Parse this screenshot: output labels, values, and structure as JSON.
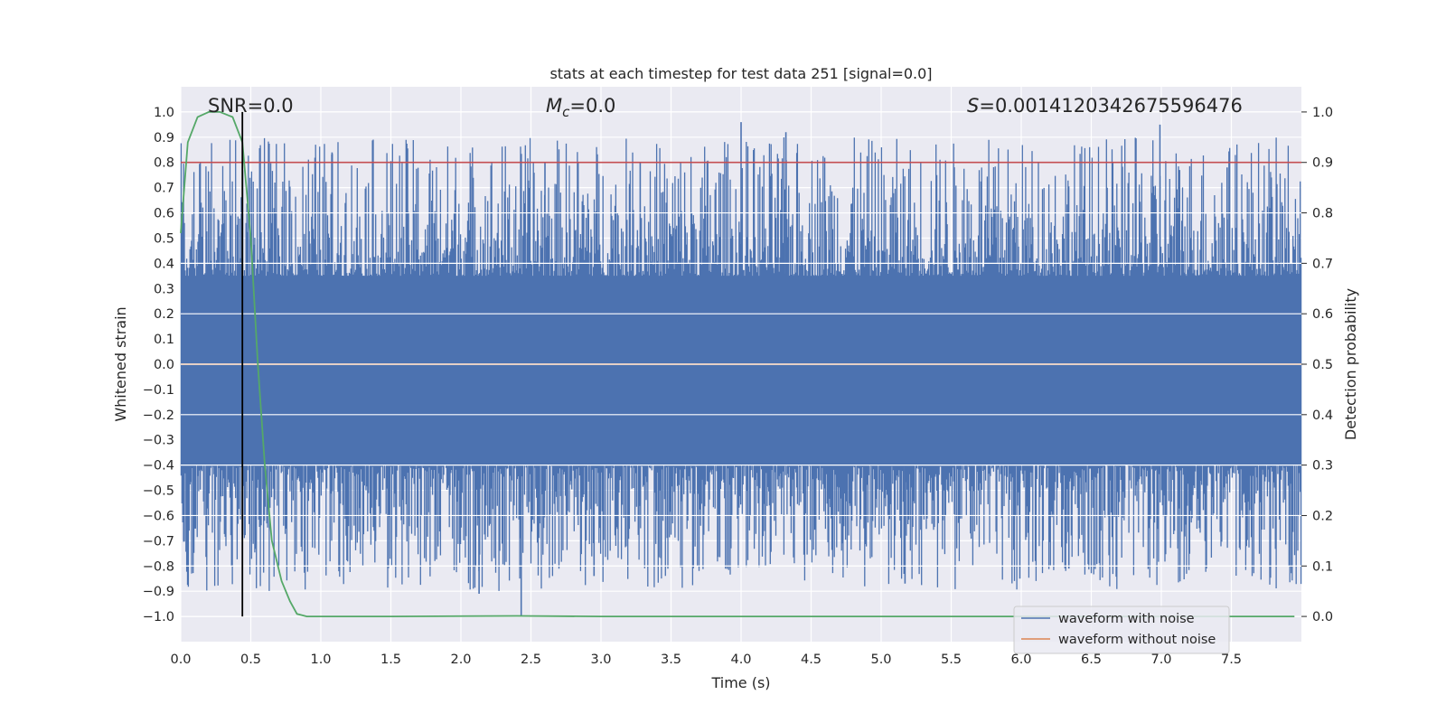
{
  "chart_data": {
    "type": "line",
    "title": "stats at each timestep for test data 251 [signal=0.0]",
    "xlabel": "Time (s)",
    "ylabel_left": "Whitened strain",
    "ylabel_right": "Detection probability",
    "xlim": [
      0.0,
      8.0
    ],
    "ylim_left": [
      -1.1,
      1.1
    ],
    "ylim_right": [
      -0.05,
      1.05
    ],
    "x_ticks": [
      "0.0",
      "0.5",
      "1.0",
      "1.5",
      "2.0",
      "2.5",
      "3.0",
      "3.5",
      "4.0",
      "4.5",
      "5.0",
      "5.5",
      "6.0",
      "6.5",
      "7.0",
      "7.5"
    ],
    "y_left_ticks": [
      "1.0",
      "0.9",
      "0.8",
      "0.7",
      "0.6",
      "0.5",
      "0.4",
      "0.3",
      "0.2",
      "0.1",
      "0.0",
      "−0.1",
      "−0.2",
      "−0.3",
      "−0.4",
      "−0.5",
      "−0.6",
      "−0.7",
      "−0.8",
      "−0.9",
      "−1.0"
    ],
    "y_right_ticks": [
      "1.0",
      "0.9",
      "0.8",
      "0.7",
      "0.6",
      "0.5",
      "0.4",
      "0.3",
      "0.2",
      "0.1",
      "0.0"
    ],
    "annotations": {
      "snr": "SNR=0.0",
      "mc_symbol": "M",
      "mc_subscript": "c",
      "mc_value": "=0.0",
      "s_symbol": "S",
      "s_value": "=0.0014120342675596476"
    },
    "series": [
      {
        "name": "waveform with noise",
        "color": "#4c72b0",
        "axis": "left",
        "description": "whitened noisy strain, dense noise band",
        "core_band": [
          -0.4,
          0.35
        ],
        "extremes": [
          -1.0,
          0.96
        ]
      },
      {
        "name": "waveform without noise",
        "color": "#dd8452",
        "axis": "left",
        "values": "constant 0.0"
      },
      {
        "name": "detection probability",
        "color": "#55a868",
        "axis": "right",
        "x": [
          0.0,
          0.05,
          0.12,
          0.2,
          0.28,
          0.37,
          0.44,
          0.5,
          0.55,
          0.6,
          0.65,
          0.72,
          0.78,
          0.83,
          0.9,
          1.5,
          2.4,
          3.0,
          4.0,
          5.0,
          6.0,
          7.0,
          7.95
        ],
        "y": [
          0.76,
          0.94,
          0.99,
          1.0,
          1.0,
          0.99,
          0.94,
          0.75,
          0.5,
          0.3,
          0.15,
          0.07,
          0.03,
          0.005,
          0.0,
          0.0,
          0.001,
          0.0,
          0.0,
          0.0,
          0.0,
          0.0,
          0.0
        ]
      }
    ],
    "threshold_line": {
      "axis": "right",
      "value": 0.9,
      "color": "#c44e52"
    },
    "marker_line": {
      "x": 0.44,
      "y_range_right": [
        0.0,
        1.0
      ],
      "color": "#000000"
    },
    "legend": {
      "location": "lower right",
      "entries": [
        "waveform with noise",
        "waveform without noise"
      ]
    },
    "colors": {
      "plot_bg": "#eaeaf2",
      "grid": "#ffffff",
      "noise": "#4c72b0",
      "clean": "#dd8452",
      "prob": "#55a868",
      "threshold": "#c44e52"
    }
  }
}
